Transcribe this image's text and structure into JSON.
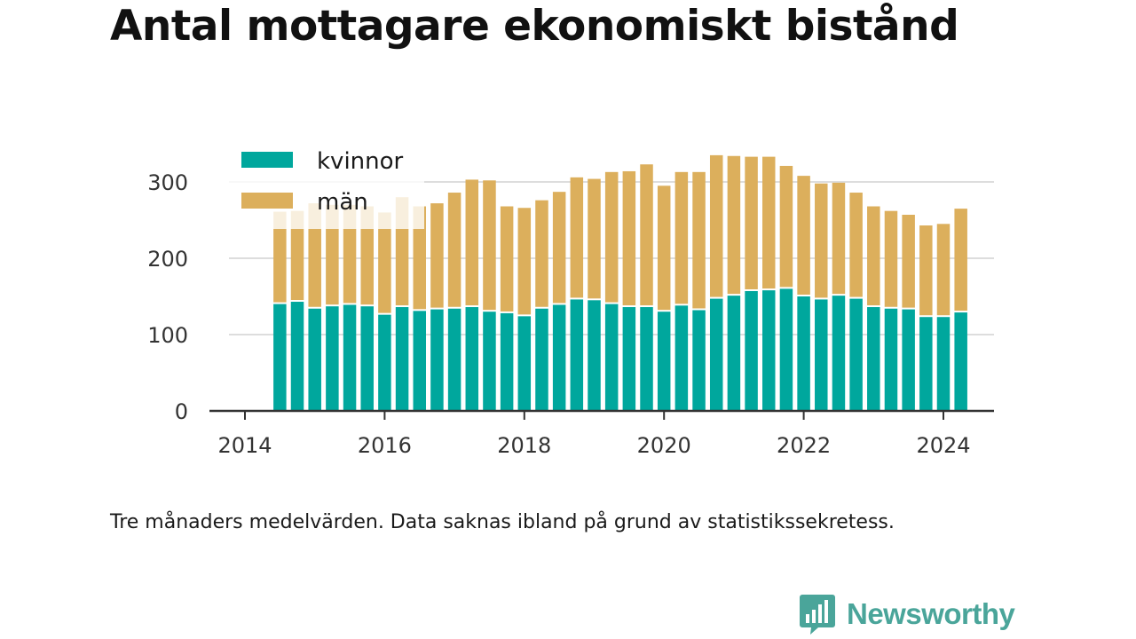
{
  "title": "Antal mottagare ekonomiskt bistånd",
  "note": "Tre månaders medelvärden. Data saknas ibland på grund av statistikssekretess.",
  "brand": {
    "name": "Newsworthy",
    "logo_icon": "bar-chart-speech-bubble-icon"
  },
  "colors": {
    "kvinnor": "#00a79d",
    "man": "#dcaf5c",
    "grid": "#dddddd",
    "axis": "#333333",
    "brand": "#4aa59a"
  },
  "chart_data": {
    "type": "bar",
    "stacked": true,
    "xlabel": "",
    "ylabel": "",
    "ylim": [
      0,
      340
    ],
    "xlim": [
      2014,
      2025.2
    ],
    "y_ticks": [
      0,
      100,
      200,
      300
    ],
    "x_ticks": [
      2014,
      2016,
      2018,
      2020,
      2022,
      2024
    ],
    "grid": true,
    "legend_position": "top-left",
    "x": [
      "2014-07",
      "2014-10",
      "2015-01",
      "2015-04",
      "2015-07",
      "2015-10",
      "2016-01",
      "2016-04",
      "2016-07",
      "2016-10",
      "2017-01",
      "2017-04",
      "2017-07",
      "2017-10",
      "2018-01",
      "2018-04",
      "2018-07",
      "2018-10",
      "2019-01",
      "2019-04",
      "2019-07",
      "2019-10",
      "2020-01",
      "2020-04",
      "2020-07",
      "2020-10",
      "2021-01",
      "2021-04",
      "2021-07",
      "2021-10",
      "2022-01",
      "2022-04",
      "2022-07",
      "2022-10",
      "2023-01",
      "2023-04",
      "2023-07",
      "2023-10",
      "2024-01",
      "2024-04"
    ],
    "series": [
      {
        "name": "kvinnor",
        "values": [
          140,
          143,
          134,
          137,
          139,
          137,
          126,
          136,
          131,
          133,
          134,
          136,
          130,
          128,
          124,
          134,
          139,
          146,
          145,
          140,
          136,
          136,
          130,
          138,
          132,
          147,
          151,
          157,
          158,
          160,
          150,
          146,
          151,
          147,
          136,
          134,
          133,
          123,
          123,
          129
        ]
      },
      {
        "name": "män",
        "values": [
          121,
          119,
          138,
          133,
          131,
          131,
          134,
          144,
          137,
          139,
          152,
          167,
          172,
          140,
          142,
          142,
          148,
          160,
          159,
          173,
          178,
          187,
          165,
          175,
          181,
          188,
          183,
          176,
          175,
          161,
          158,
          152,
          148,
          139,
          132,
          128,
          124,
          120,
          122,
          136
        ]
      }
    ]
  }
}
